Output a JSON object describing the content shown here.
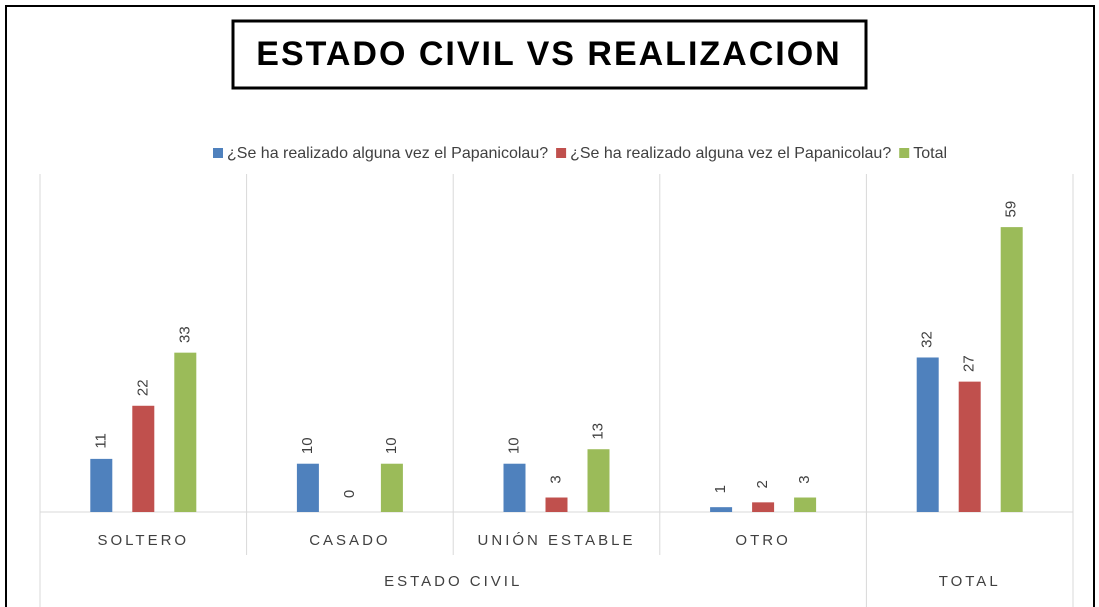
{
  "chart_data": {
    "type": "bar",
    "title": "ESTADO CIVIL VS REALIZACION",
    "categories": [
      "SOLTERO",
      "CASADO",
      "UNIÓN ESTABLE",
      "OTRO",
      null
    ],
    "groups": [
      {
        "label": "ESTADO CIVIL",
        "count": 4
      },
      {
        "label": "TOTAL",
        "count": 1
      }
    ],
    "series": [
      {
        "name": "¿Se ha realizado alguna vez el Papanicolau?",
        "color": "#4f81bd",
        "values": [
          11,
          10,
          10,
          1,
          32
        ]
      },
      {
        "name": "¿Se ha realizado alguna vez el Papanicolau?",
        "color": "#c0504d",
        "values": [
          22,
          0,
          3,
          2,
          27
        ]
      },
      {
        "name": "Total",
        "color": "#9bbb59",
        "values": [
          33,
          10,
          13,
          3,
          59
        ]
      }
    ],
    "ylim": [
      0,
      70
    ],
    "legend": "top"
  }
}
